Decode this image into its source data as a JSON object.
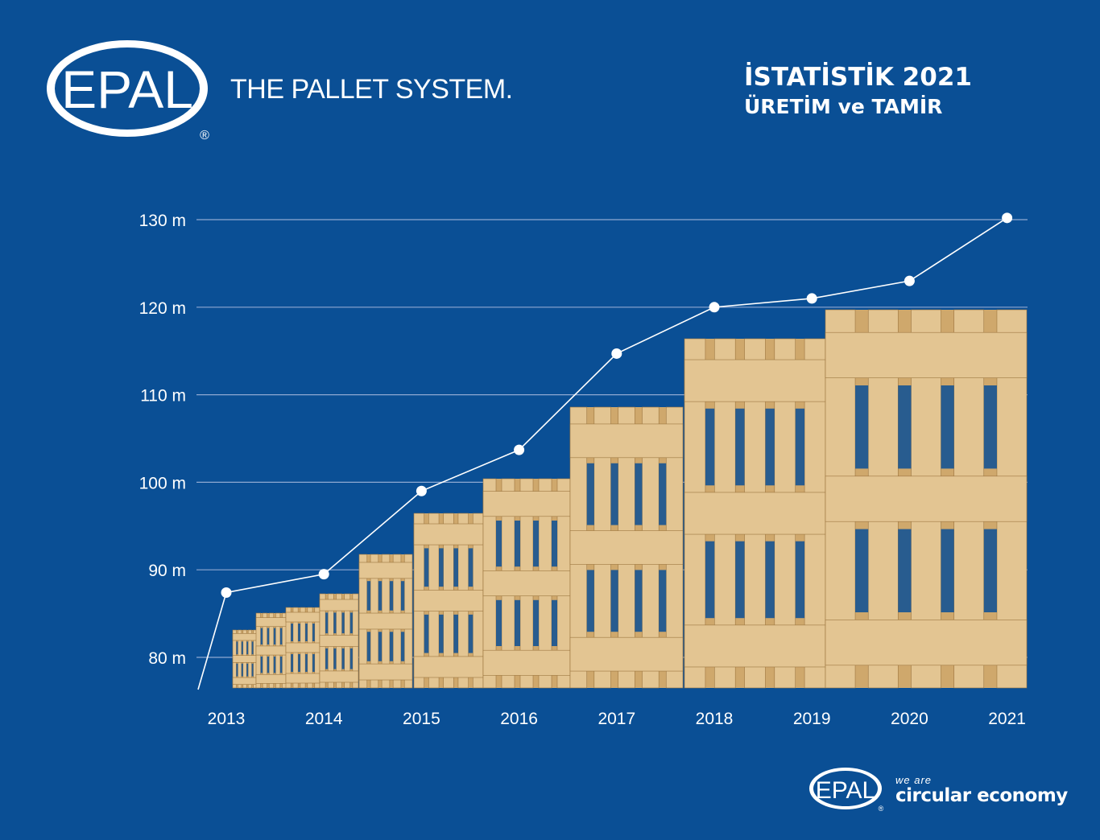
{
  "brand": {
    "logo_text": "EPAL",
    "registered": "®",
    "tagline": "THE PALLET SYSTEM."
  },
  "header": {
    "title": "İSTATİSTİK 2021",
    "subtitle": "ÜRETİM ve TAMİR"
  },
  "footer": {
    "logo_text": "EPAL",
    "registered": "®",
    "line1": "we are",
    "line2": "circular economy"
  },
  "colors": {
    "background": "#0a4f95",
    "line": "#ffffff",
    "gridline": "#8fa9d2",
    "wood_light": "#e3c592",
    "wood_mid": "#cfa86c",
    "wood_dark": "#9c7640"
  },
  "chart_data": {
    "type": "line",
    "title": "İSTATİSTİK 2021",
    "subtitle": "ÜRETİM ve TAMİR",
    "categories": [
      "2013",
      "2014",
      "2015",
      "2016",
      "2017",
      "2018",
      "2019",
      "2020",
      "2021"
    ],
    "y_ticks": [
      80,
      90,
      100,
      110,
      120,
      130
    ],
    "y_tick_labels": [
      "80 m",
      "90 m",
      "100 m",
      "110 m",
      "120 m",
      "130 m"
    ],
    "ylim": [
      76,
      132
    ],
    "grid": true,
    "series": [
      {
        "values": [
          87.4,
          89.5,
          99.0,
          103.7,
          114.7,
          120.0,
          121.0,
          123.0,
          130.2
        ]
      }
    ],
    "decoration": "wooden pallet illustrations growing in size behind the line"
  }
}
